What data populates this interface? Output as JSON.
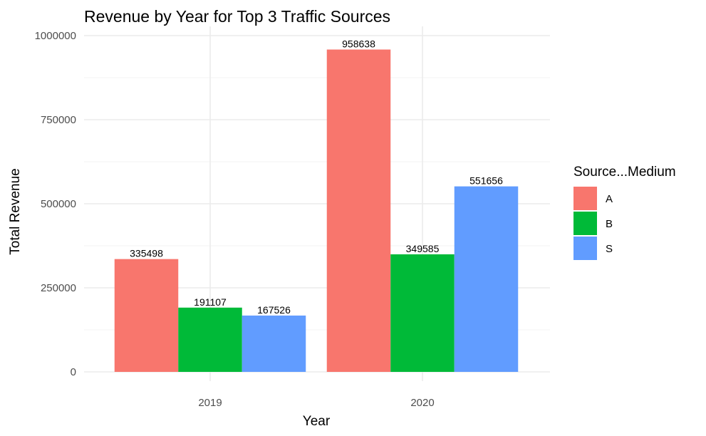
{
  "chart_data": {
    "type": "bar",
    "title": "Revenue by Year for Top 3 Traffic Sources",
    "xlabel": "Year",
    "ylabel": "Total Revenue",
    "categories": [
      "2019",
      "2020"
    ],
    "series": [
      {
        "name": "A",
        "color": "#F8766D",
        "values": [
          335498,
          958638
        ],
        "labels": [
          "335498",
          "958638"
        ]
      },
      {
        "name": "B",
        "color": "#00BA38",
        "values": [
          191107,
          349585
        ],
        "labels": [
          "191107",
          "349585"
        ]
      },
      {
        "name": "S",
        "color": "#619CFF",
        "values": [
          167526,
          551656
        ],
        "labels": [
          "167526",
          "551656"
        ]
      }
    ],
    "ylim": [
      0,
      1000000
    ],
    "yticks": [
      0,
      250000,
      500000,
      750000,
      1000000
    ],
    "ytick_labels": [
      "0",
      "250000",
      "500000",
      "750000",
      "1000000"
    ],
    "legend": {
      "title": "Source...Medium",
      "position": "right"
    },
    "grid": true,
    "theme": "minimal"
  }
}
